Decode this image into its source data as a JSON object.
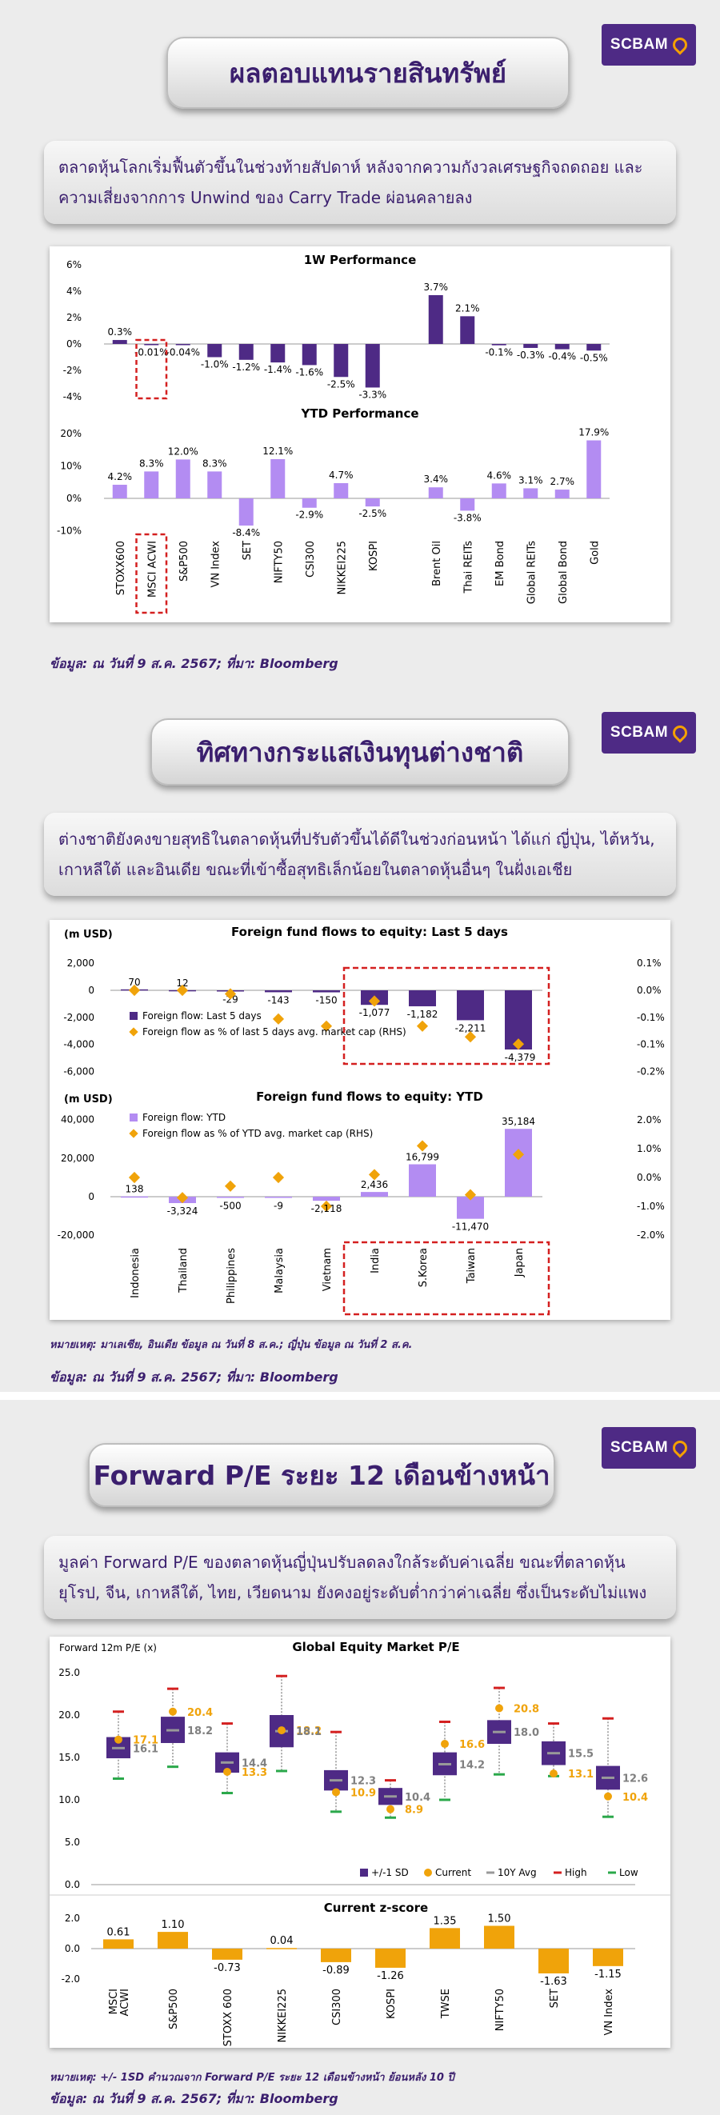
{
  "brand": {
    "logo_text": "SCBAM",
    "primary": "#4e2a85",
    "light": "#b38cf2",
    "orange": "#f0a30a",
    "red": "#d42020"
  },
  "section1": {
    "title": "ผลตอบแทนรายสินทรัพย์",
    "summary": "ตลาดหุ้นโลกเริ่มฟื้นตัวขึ้นในช่วงท้ายสัปดาห์ หลังจากความกังวลเศรษฐกิจถดถอย และความเสี่ยงจากการ Unwind ของ Carry Trade ผ่อนคลายลง",
    "source": "ข้อมูล: ณ วันที่ 9 ส.ค. 2567; ที่มา: Bloomberg"
  },
  "section2": {
    "title": "ทิศทางกระแสเงินทุนต่างชาติ",
    "summary": "ต่างชาติยังคงขายสุทธิในตลาดหุ้นที่ปรับตัวขึ้นได้ดีในช่วงก่อนหน้า ได้แก่ ญี่ปุ่น, ไต้หวัน, เกาหลีใต้ และอินเดีย ขณะที่เข้าซื้อสุทธิเล็กน้อยในตลาดหุ้นอื่นๆ ในฝั่งเอเชีย",
    "note": "หมายเหตุ: มาเลเซีย, อินเดีย ข้อมูล ณ วันที่ 8 ส.ค.; ญี่ปุ่น ข้อมูล ณ วันที่ 2 ส.ค.",
    "source": "ข้อมูล: ณ วันที่ 9 ส.ค. 2567; ที่มา: Bloomberg"
  },
  "section3": {
    "title": "Forward P/E ระยะ 12 เดือนข้างหน้า",
    "summary": "มูลค่า Forward P/E ของตลาดหุ้นญี่ปุ่นปรับลดลงใกล้ระดับค่าเฉลี่ย ขณะที่ตลาดหุ้นยุโรป, จีน, เกาหลีใต้, ไทย, เวียดนาม ยังคงอยู่ระดับต่ำกว่าค่าเฉลี่ย ซึ่งเป็นระดับไม่แพง",
    "note": "หมายเหตุ: +/- 1SD คำนวณจาก Forward P/E ระยะ 12 เดือนข้างหน้า ย้อนหลัง 10 ปี",
    "source": "ข้อมูล: ณ วันที่ 9 ส.ค. 2567; ที่มา: Bloomberg"
  },
  "chart_data": [
    {
      "id": "perf1w",
      "type": "bar",
      "title": "1W Performance",
      "categories": [
        "STOXX600",
        "MSCI ACWI",
        "S&P500",
        "VN Index",
        "SET",
        "NIFTY50",
        "CSI300",
        "NIKKEI225",
        "KOSPI",
        "",
        "Brent Oil",
        "Thai REITs",
        "EM Bond",
        "Global REITs",
        "Global Bond",
        "Gold"
      ],
      "values": [
        0.3,
        -0.01,
        -0.04,
        -1.0,
        -1.2,
        -1.4,
        -1.6,
        -2.5,
        -3.3,
        null,
        3.7,
        2.1,
        -0.1,
        -0.3,
        -0.4,
        -0.5
      ],
      "labels": [
        "0.3%",
        "-0.01%",
        "-0.04%",
        "-1.0%",
        "-1.2%",
        "-1.4%",
        "-1.6%",
        "-2.5%",
        "-3.3%",
        "",
        "3.7%",
        "2.1%",
        "-0.1%",
        "-0.3%",
        "-0.4%",
        "-0.5%"
      ],
      "ylim": [
        -4,
        6
      ],
      "yticks": [
        "6%",
        "4%",
        "2%",
        "0%",
        "-2%",
        "-4%"
      ]
    },
    {
      "id": "perfytd",
      "type": "bar",
      "title": "YTD Performance",
      "categories": [
        "STOXX600",
        "MSCI ACWI",
        "S&P500",
        "VN Index",
        "SET",
        "NIFTY50",
        "CSI300",
        "NIKKEI225",
        "KOSPI",
        "",
        "Brent Oil",
        "Thai REITs",
        "EM Bond",
        "Global REITs",
        "Global Bond",
        "Gold"
      ],
      "values": [
        4.2,
        8.3,
        12.0,
        8.3,
        -8.4,
        12.1,
        -2.9,
        4.7,
        -2.5,
        null,
        3.4,
        -3.8,
        4.6,
        3.1,
        2.7,
        17.9
      ],
      "labels": [
        "4.2%",
        "8.3%",
        "12.0%",
        "8.3%",
        "-8.4%",
        "12.1%",
        "-2.9%",
        "4.7%",
        "-2.5%",
        "",
        "3.4%",
        "-3.8%",
        "4.6%",
        "3.1%",
        "2.7%",
        "17.9%"
      ],
      "ylim": [
        -10,
        20
      ],
      "yticks": [
        "20%",
        "10%",
        "0%",
        "-10%"
      ]
    },
    {
      "id": "flow5d",
      "type": "bar",
      "title": "Foreign fund flows to equity: Last 5 days",
      "ylabel": "(m USD)",
      "categories": [
        "Indonesia",
        "Thailand",
        "Philippines",
        "Malaysia",
        "Vietnam",
        "India",
        "S.Korea",
        "Taiwan",
        "Japan"
      ],
      "values": [
        70,
        12,
        -29,
        -143,
        -150,
        -1077,
        -1182,
        -2211,
        -4379
      ],
      "labels": [
        "70",
        "12",
        "-29",
        "-143",
        "-150",
        "-1,077",
        "-1,182",
        "-2,211",
        "-4,379"
      ],
      "rhs_pct": [
        0.0,
        0.0,
        -0.01,
        -0.08,
        -0.1,
        -0.03,
        -0.1,
        -0.13,
        -0.15
      ],
      "ylim": [
        -6000,
        2000
      ],
      "yticks": [
        "2,000",
        "0",
        "-2,000",
        "-4,000",
        "-6,000"
      ],
      "y2ticks": [
        "0.1%",
        "0.0%",
        "-0.1%",
        "-0.1%",
        "-0.2%"
      ],
      "legend": [
        "Foreign flow: Last 5 days",
        "Foreign flow as % of last 5 days avg. market cap (RHS)"
      ]
    },
    {
      "id": "flowytd",
      "type": "bar",
      "title": "Foreign fund flows to equity: YTD",
      "ylabel": "(m USD)",
      "categories": [
        "Indonesia",
        "Thailand",
        "Philippines",
        "Malaysia",
        "Vietnam",
        "India",
        "S.Korea",
        "Taiwan",
        "Japan"
      ],
      "values": [
        138,
        -3324,
        -500,
        -9,
        -2118,
        2436,
        16799,
        -11470,
        35184
      ],
      "labels": [
        "138",
        "-3,324",
        "-500",
        "-9",
        "-2,118",
        "2,436",
        "16,799",
        "-11,470",
        "35,184"
      ],
      "rhs_pct": [
        0.0,
        -0.7,
        -0.3,
        0.0,
        -1.0,
        0.1,
        1.1,
        -0.6,
        0.8
      ],
      "ylim": [
        -20000,
        40000
      ],
      "yticks": [
        "40,000",
        "20,000",
        "0",
        "-20,000"
      ],
      "y2ticks": [
        "2.0%",
        "1.0%",
        "0.0%",
        "-1.0%",
        "-2.0%"
      ],
      "legend": [
        "Foreign flow: YTD",
        "Foreign flow as % of YTD avg. market cap (RHS)"
      ]
    },
    {
      "id": "pe",
      "type": "box",
      "title": "Global Equity Market P/E",
      "ylabel": "Forward 12m P/E (x)",
      "categories": [
        "MSCI ACWI",
        "S&P500",
        "STOXX 600",
        "NIKKEI225",
        "CSI300",
        "KOSPI",
        "TWSE",
        "NIFTY50",
        "SET",
        "VN Index"
      ],
      "current": [
        17.1,
        20.4,
        13.3,
        18.2,
        10.9,
        8.9,
        16.6,
        20.8,
        13.1,
        10.4
      ],
      "avg": [
        16.1,
        18.2,
        14.4,
        18.1,
        12.3,
        10.4,
        14.2,
        18.0,
        15.5,
        12.6
      ],
      "sd_low": [
        14.9,
        16.7,
        13.2,
        16.2,
        11.1,
        9.4,
        12.9,
        16.6,
        14.1,
        11.2
      ],
      "sd_high": [
        17.4,
        19.8,
        15.6,
        20.0,
        13.5,
        11.4,
        15.6,
        19.4,
        16.9,
        14.0
      ],
      "high": [
        20.4,
        23.1,
        19.0,
        24.6,
        18.0,
        12.3,
        19.2,
        23.2,
        19.0,
        19.6
      ],
      "low": [
        12.5,
        13.9,
        10.8,
        13.4,
        8.6,
        7.9,
        10.0,
        13.0,
        12.8,
        8.0
      ],
      "current_labels": [
        "17.1",
        "20.4",
        "13.3",
        "18.2",
        "10.9",
        "8.9",
        "16.6",
        "20.8",
        "13.1",
        "10.4"
      ],
      "avg_labels": [
        "16.1",
        "18.2",
        "14.4",
        "18.1",
        "12.3",
        "10.4",
        "14.2",
        "18.0",
        "15.5",
        "12.6"
      ],
      "ylim": [
        0,
        25
      ],
      "yticks": [
        "25.0",
        "20.0",
        "15.0",
        "10.0",
        "5.0",
        "0.0"
      ],
      "legend": [
        "+/-1 SD",
        "Current",
        "10Y Avg",
        "High",
        "Low"
      ]
    },
    {
      "id": "zscore",
      "type": "bar",
      "title": "Current z-score",
      "categories": [
        "MSCI ACWI",
        "S&P500",
        "STOXX 600",
        "NIKKEI225",
        "CSI300",
        "KOSPI",
        "TWSE",
        "NIFTY50",
        "SET",
        "VN Index"
      ],
      "values": [
        0.61,
        1.1,
        -0.73,
        0.04,
        -0.89,
        -1.26,
        1.35,
        1.5,
        -1.63,
        -1.15
      ],
      "labels": [
        "0.61",
        "1.10",
        "-0.73",
        "0.04",
        "-0.89",
        "-1.26",
        "1.35",
        "1.50",
        "-1.63",
        "-1.15"
      ],
      "ylim": [
        -2,
        2
      ],
      "yticks": [
        "2.0",
        "0.0",
        "-2.0"
      ]
    }
  ]
}
